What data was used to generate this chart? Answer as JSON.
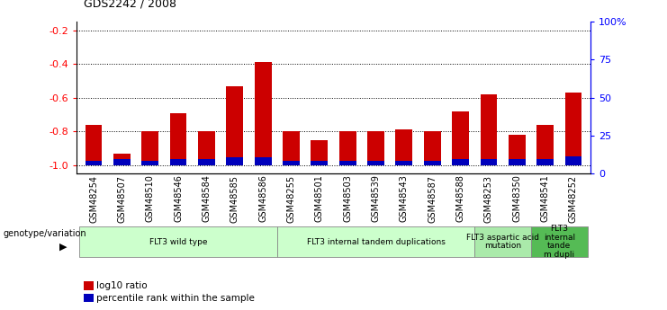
{
  "title": "GDS2242 / 2008",
  "samples": [
    "GSM48254",
    "GSM48507",
    "GSM48510",
    "GSM48546",
    "GSM48584",
    "GSM48585",
    "GSM48586",
    "GSM48255",
    "GSM48501",
    "GSM48503",
    "GSM48539",
    "GSM48543",
    "GSM48587",
    "GSM48588",
    "GSM48253",
    "GSM48350",
    "GSM48541",
    "GSM48252"
  ],
  "log10_ratio": [
    -0.76,
    -0.93,
    -0.8,
    -0.69,
    -0.8,
    -0.53,
    -0.39,
    -0.8,
    -0.85,
    -0.8,
    -0.8,
    -0.79,
    -0.8,
    -0.68,
    -0.58,
    -0.82,
    -0.76,
    -0.57
  ],
  "percentile_rank": [
    3,
    4,
    3,
    4,
    4,
    5,
    5,
    3,
    3,
    3,
    3,
    3,
    3,
    4,
    4,
    4,
    4,
    6
  ],
  "bar_color_red": "#cc0000",
  "bar_color_blue": "#0000bb",
  "groups": [
    {
      "label": "FLT3 wild type",
      "start": 0,
      "end": 7,
      "color": "#ccffcc"
    },
    {
      "label": "FLT3 internal tandem duplications",
      "start": 7,
      "end": 14,
      "color": "#ccffcc"
    },
    {
      "label": "FLT3 aspartic acid\nmutation",
      "start": 14,
      "end": 16,
      "color": "#aaeaaa"
    },
    {
      "label": "FLT3\ninternal\ntande\nm dupli",
      "start": 16,
      "end": 18,
      "color": "#55bb55"
    }
  ],
  "ylim_left": [
    -1.05,
    -0.15
  ],
  "ylim_right": [
    0,
    100
  ],
  "yticks_left": [
    -1.0,
    -0.8,
    -0.6,
    -0.4,
    -0.2
  ],
  "yticks_right": [
    0,
    25,
    50,
    75,
    100
  ],
  "ytick_labels_right": [
    "0",
    "25",
    "50",
    "75",
    "100%"
  ],
  "genotype_label": "genotype/variation",
  "legend_red": "log10 ratio",
  "legend_blue": "percentile rank within the sample",
  "background_color": "#ffffff",
  "plot_bg": "#ffffff"
}
